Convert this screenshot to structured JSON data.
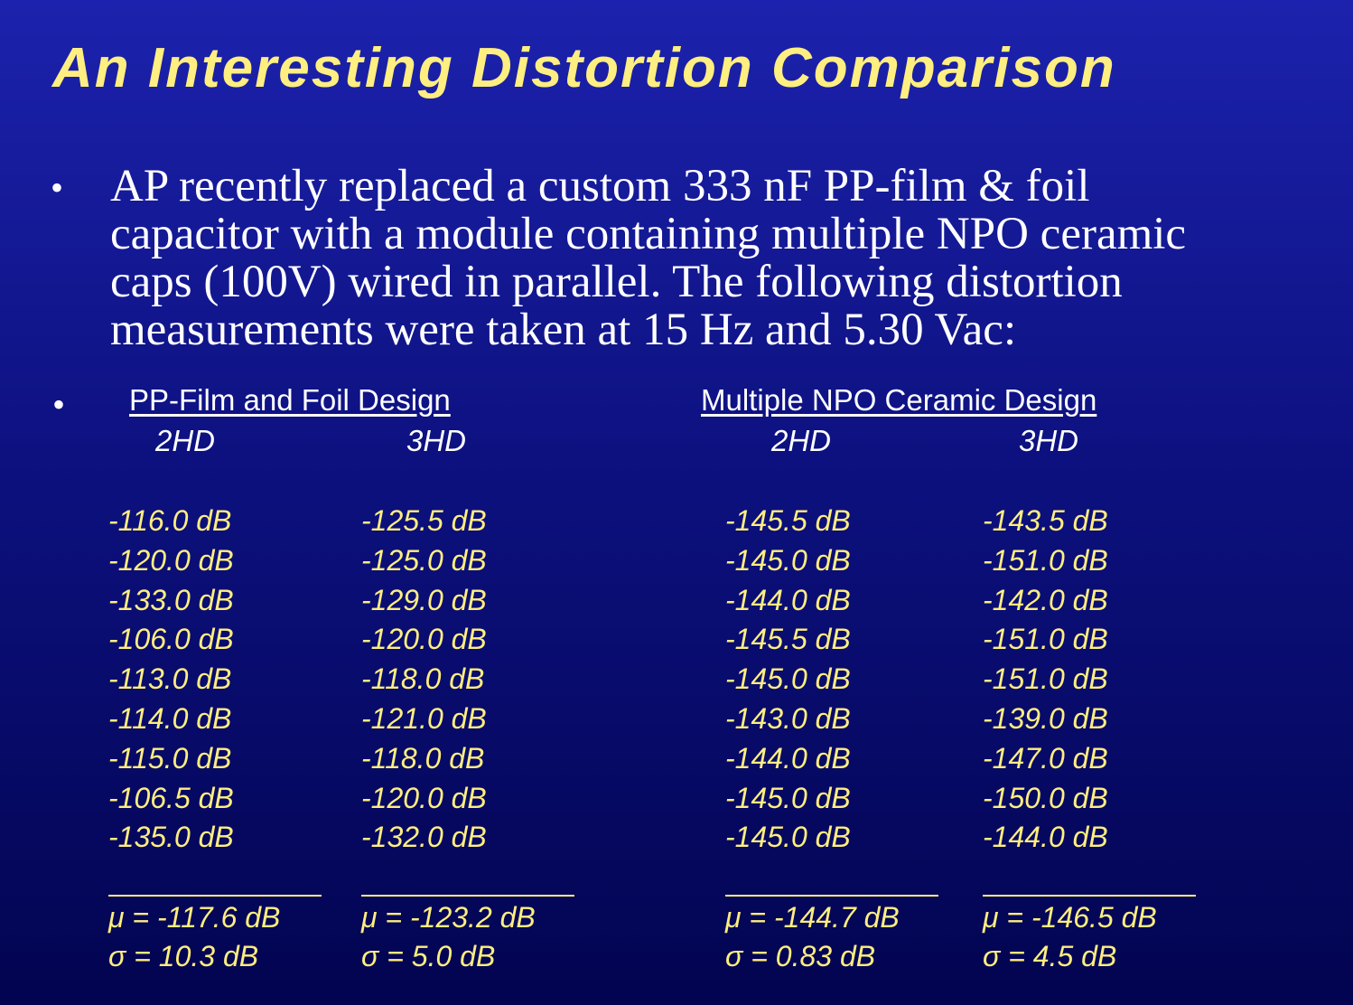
{
  "title": "An Interesting Distortion Comparison",
  "intro": {
    "lines": [
      "AP recently replaced a custom 333 nF PP-film & foil",
      "capacitor with a module containing multiple NPO ceramic",
      "caps (100V) wired in parallel.  The following distortion",
      "measurements were taken at 15 Hz and 5.30 Vac:"
    ]
  },
  "comparison": {
    "designs": [
      {
        "heading": "PP-Film and Foil Design",
        "columns": [
          {
            "header": "2HD",
            "values": [
              "-116.0 dB",
              "-120.0 dB",
              "-133.0 dB",
              "-106.0 dB",
              "-113.0 dB",
              "-114.0 dB",
              "-115.0 dB",
              "-106.5 dB",
              "-135.0 dB"
            ],
            "mean": "μ = -117.6 dB",
            "sigma": "σ = 10.3 dB"
          },
          {
            "header": "3HD",
            "values": [
              "-125.5 dB",
              "-125.0 dB",
              "-129.0 dB",
              "-120.0 dB",
              "-118.0 dB",
              "-121.0 dB",
              "-118.0 dB",
              "-120.0 dB",
              "-132.0 dB"
            ],
            "mean": "μ = -123.2 dB",
            "sigma": "σ = 5.0 dB"
          }
        ]
      },
      {
        "heading": "Multiple NPO Ceramic Design",
        "columns": [
          {
            "header": "2HD",
            "values": [
              "-145.5 dB",
              "-145.0 dB",
              "-144.0 dB",
              "-145.5 dB",
              "-145.0 dB",
              "-143.0 dB",
              "-144.0 dB",
              "-145.0 dB",
              "-145.0 dB"
            ],
            "mean": "μ = -144.7 dB",
            "sigma": "σ = 0.83 dB"
          },
          {
            "header": "3HD",
            "values": [
              "-143.5 dB",
              "-151.0 dB",
              "-142.0 dB",
              "-151.0 dB",
              "-151.0 dB",
              "-139.0 dB",
              "-147.0 dB",
              "-150.0 dB",
              "-144.0 dB"
            ],
            "mean": "μ = -146.5 dB",
            "sigma": "σ = 4.5 dB"
          }
        ]
      }
    ]
  }
}
